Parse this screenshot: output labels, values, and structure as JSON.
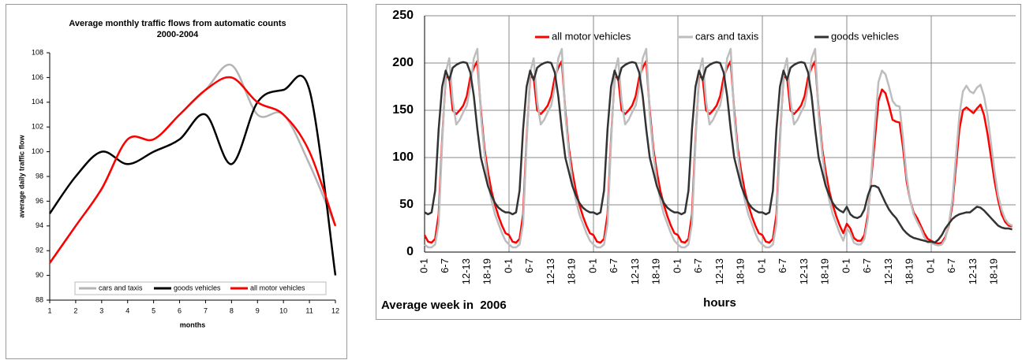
{
  "chart_data": [
    {
      "type": "line",
      "title": "Average monthly traffic flows from automatic counts",
      "subtitle": "2000-2004",
      "x_label": "months",
      "y_label": "average daily traffic flow",
      "x": [
        1,
        2,
        3,
        4,
        5,
        6,
        7,
        8,
        9,
        10,
        11,
        12
      ],
      "xlim": [
        1,
        12
      ],
      "xticks": [
        1,
        2,
        3,
        4,
        5,
        6,
        7,
        8,
        9,
        10,
        11,
        12
      ],
      "ylim": [
        88,
        108
      ],
      "yticks": [
        88,
        90,
        92,
        94,
        96,
        98,
        100,
        102,
        104,
        106,
        108
      ],
      "grid": false,
      "legend": "bottom",
      "series": [
        {
          "name": "cars and taxis",
          "color": "#b4b4b4",
          "values": [
            91,
            94,
            97,
            101,
            101,
            103,
            105,
            107,
            103,
            103,
            99,
            94
          ]
        },
        {
          "name": "goods vehicles",
          "color": "#000000",
          "values": [
            95,
            98,
            100,
            99,
            100,
            101,
            103,
            99,
            104,
            105,
            105,
            90
          ]
        },
        {
          "name": "all motor vehicles",
          "color": "#ff0000",
          "values": [
            91,
            94,
            97,
            101,
            101,
            103,
            105,
            106,
            104,
            103,
            100,
            94
          ]
        }
      ]
    },
    {
      "type": "line",
      "annotation": "Average week in  2006",
      "x_label": "hours",
      "categories": [
        "0-1",
        null,
        null,
        null,
        null,
        null,
        "6-7",
        null,
        null,
        null,
        null,
        null,
        "12-13",
        null,
        null,
        null,
        null,
        null,
        "18-19",
        null,
        null,
        null,
        null,
        null,
        "0-1",
        null,
        null,
        null,
        null,
        null,
        "6-7",
        null,
        null,
        null,
        null,
        null,
        "12-13",
        null,
        null,
        null,
        null,
        null,
        "18-19",
        null,
        null,
        null,
        null,
        null,
        "0-1",
        null,
        null,
        null,
        null,
        null,
        "6-7",
        null,
        null,
        null,
        null,
        null,
        "12-13",
        null,
        null,
        null,
        null,
        null,
        "18-19",
        null,
        null,
        null,
        null,
        null,
        "0-1",
        null,
        null,
        null,
        null,
        null,
        "6-7",
        null,
        null,
        null,
        null,
        null,
        "12-13",
        null,
        null,
        null,
        null,
        null,
        "18-19",
        null,
        null,
        null,
        null,
        null,
        "0-1",
        null,
        null,
        null,
        null,
        null,
        "6-7",
        null,
        null,
        null,
        null,
        null,
        "12-13",
        null,
        null,
        null,
        null,
        null,
        "18-19",
        null,
        null,
        null,
        null,
        null,
        "0-1",
        null,
        null,
        null,
        null,
        null,
        "6-7",
        null,
        null,
        null,
        null,
        null,
        "12-13",
        null,
        null,
        null,
        null,
        null,
        "18-19",
        null,
        null,
        null,
        null,
        null,
        "0-1",
        null,
        null,
        null,
        null,
        null,
        "6-7",
        null,
        null,
        null,
        null,
        null,
        "12-13",
        null,
        null,
        null,
        null,
        null,
        "18-19",
        null,
        null,
        null,
        null,
        null
      ],
      "ylim": [
        0,
        250
      ],
      "yticks": [
        0,
        50,
        100,
        150,
        200,
        250
      ],
      "grid": true,
      "legend": "top",
      "series": [
        {
          "name": "all motor vehicles",
          "color": "#ff0000",
          "values": [
            18,
            11,
            10,
            14,
            40,
            120,
            185,
            185,
            150,
            146,
            150,
            155,
            165,
            185,
            195,
            202,
            150,
            110,
            85,
            65,
            50,
            38,
            28,
            20,
            18,
            11,
            10,
            14,
            40,
            120,
            185,
            185,
            150,
            146,
            150,
            155,
            165,
            185,
            195,
            202,
            150,
            110,
            85,
            65,
            50,
            38,
            28,
            20,
            18,
            11,
            10,
            14,
            40,
            120,
            185,
            185,
            150,
            146,
            150,
            155,
            165,
            185,
            195,
            202,
            150,
            110,
            85,
            65,
            50,
            38,
            28,
            20,
            18,
            11,
            10,
            14,
            40,
            120,
            185,
            185,
            150,
            146,
            150,
            155,
            165,
            185,
            195,
            202,
            150,
            110,
            85,
            65,
            50,
            38,
            28,
            20,
            18,
            11,
            10,
            14,
            40,
            120,
            185,
            185,
            150,
            146,
            150,
            155,
            165,
            185,
            195,
            202,
            150,
            110,
            85,
            65,
            50,
            38,
            28,
            20,
            30,
            25,
            15,
            12,
            12,
            18,
            40,
            80,
            120,
            160,
            172,
            168,
            155,
            140,
            138,
            137,
            110,
            75,
            55,
            42,
            36,
            28,
            20,
            14,
            12,
            10,
            9,
            10,
            16,
            28,
            50,
            90,
            130,
            150,
            153,
            150,
            147,
            152,
            156,
            145,
            125,
            100,
            75,
            55,
            40,
            32,
            28,
            27
          ]
        },
        {
          "name": "cars and taxis",
          "color": "#bdbdbd",
          "values": [
            8,
            5,
            5,
            8,
            30,
            115,
            190,
            205,
            160,
            135,
            140,
            148,
            155,
            175,
            205,
            215,
            145,
            105,
            75,
            55,
            40,
            30,
            20,
            12,
            8,
            5,
            5,
            8,
            30,
            115,
            190,
            205,
            160,
            135,
            140,
            148,
            155,
            175,
            205,
            215,
            145,
            105,
            75,
            55,
            40,
            30,
            20,
            12,
            8,
            5,
            5,
            8,
            30,
            115,
            190,
            205,
            160,
            135,
            140,
            148,
            155,
            175,
            205,
            215,
            145,
            105,
            75,
            55,
            40,
            30,
            20,
            12,
            8,
            5,
            5,
            8,
            30,
            115,
            190,
            205,
            160,
            135,
            140,
            148,
            155,
            175,
            205,
            215,
            145,
            105,
            75,
            55,
            40,
            30,
            20,
            12,
            8,
            5,
            5,
            8,
            30,
            115,
            190,
            205,
            160,
            135,
            140,
            148,
            155,
            175,
            205,
            215,
            145,
            105,
            75,
            55,
            40,
            30,
            20,
            12,
            25,
            20,
            10,
            8,
            8,
            14,
            35,
            85,
            135,
            180,
            192,
            188,
            175,
            160,
            155,
            154,
            120,
            80,
            55,
            40,
            32,
            25,
            16,
            10,
            10,
            8,
            7,
            8,
            14,
            30,
            55,
            100,
            145,
            170,
            176,
            170,
            168,
            174,
            177,
            165,
            145,
            115,
            85,
            60,
            45,
            35,
            30,
            28
          ]
        },
        {
          "name": "goods vehicles",
          "color": "#333333",
          "values": [
            42,
            40,
            42,
            65,
            130,
            175,
            192,
            182,
            195,
            198,
            200,
            201,
            200,
            190,
            165,
            130,
            100,
            85,
            70,
            60,
            52,
            47,
            44,
            42,
            42,
            40,
            42,
            65,
            130,
            175,
            192,
            182,
            195,
            198,
            200,
            201,
            200,
            190,
            165,
            130,
            100,
            85,
            70,
            60,
            52,
            47,
            44,
            42,
            42,
            40,
            42,
            65,
            130,
            175,
            192,
            182,
            195,
            198,
            200,
            201,
            200,
            190,
            165,
            130,
            100,
            85,
            70,
            60,
            52,
            47,
            44,
            42,
            42,
            40,
            42,
            65,
            130,
            175,
            192,
            182,
            195,
            198,
            200,
            201,
            200,
            190,
            165,
            130,
            100,
            85,
            70,
            60,
            52,
            47,
            44,
            42,
            42,
            40,
            42,
            65,
            130,
            175,
            192,
            182,
            195,
            198,
            200,
            201,
            200,
            190,
            165,
            130,
            100,
            85,
            70,
            60,
            52,
            47,
            44,
            42,
            48,
            40,
            37,
            36,
            38,
            45,
            60,
            70,
            70,
            68,
            60,
            52,
            45,
            40,
            36,
            30,
            24,
            20,
            17,
            15,
            14,
            13,
            12,
            11,
            11,
            10,
            13,
            18,
            25,
            30,
            35,
            38,
            40,
            41,
            42,
            42,
            45,
            48,
            47,
            44,
            40,
            36,
            32,
            28,
            26,
            25,
            25,
            24
          ]
        }
      ]
    }
  ]
}
